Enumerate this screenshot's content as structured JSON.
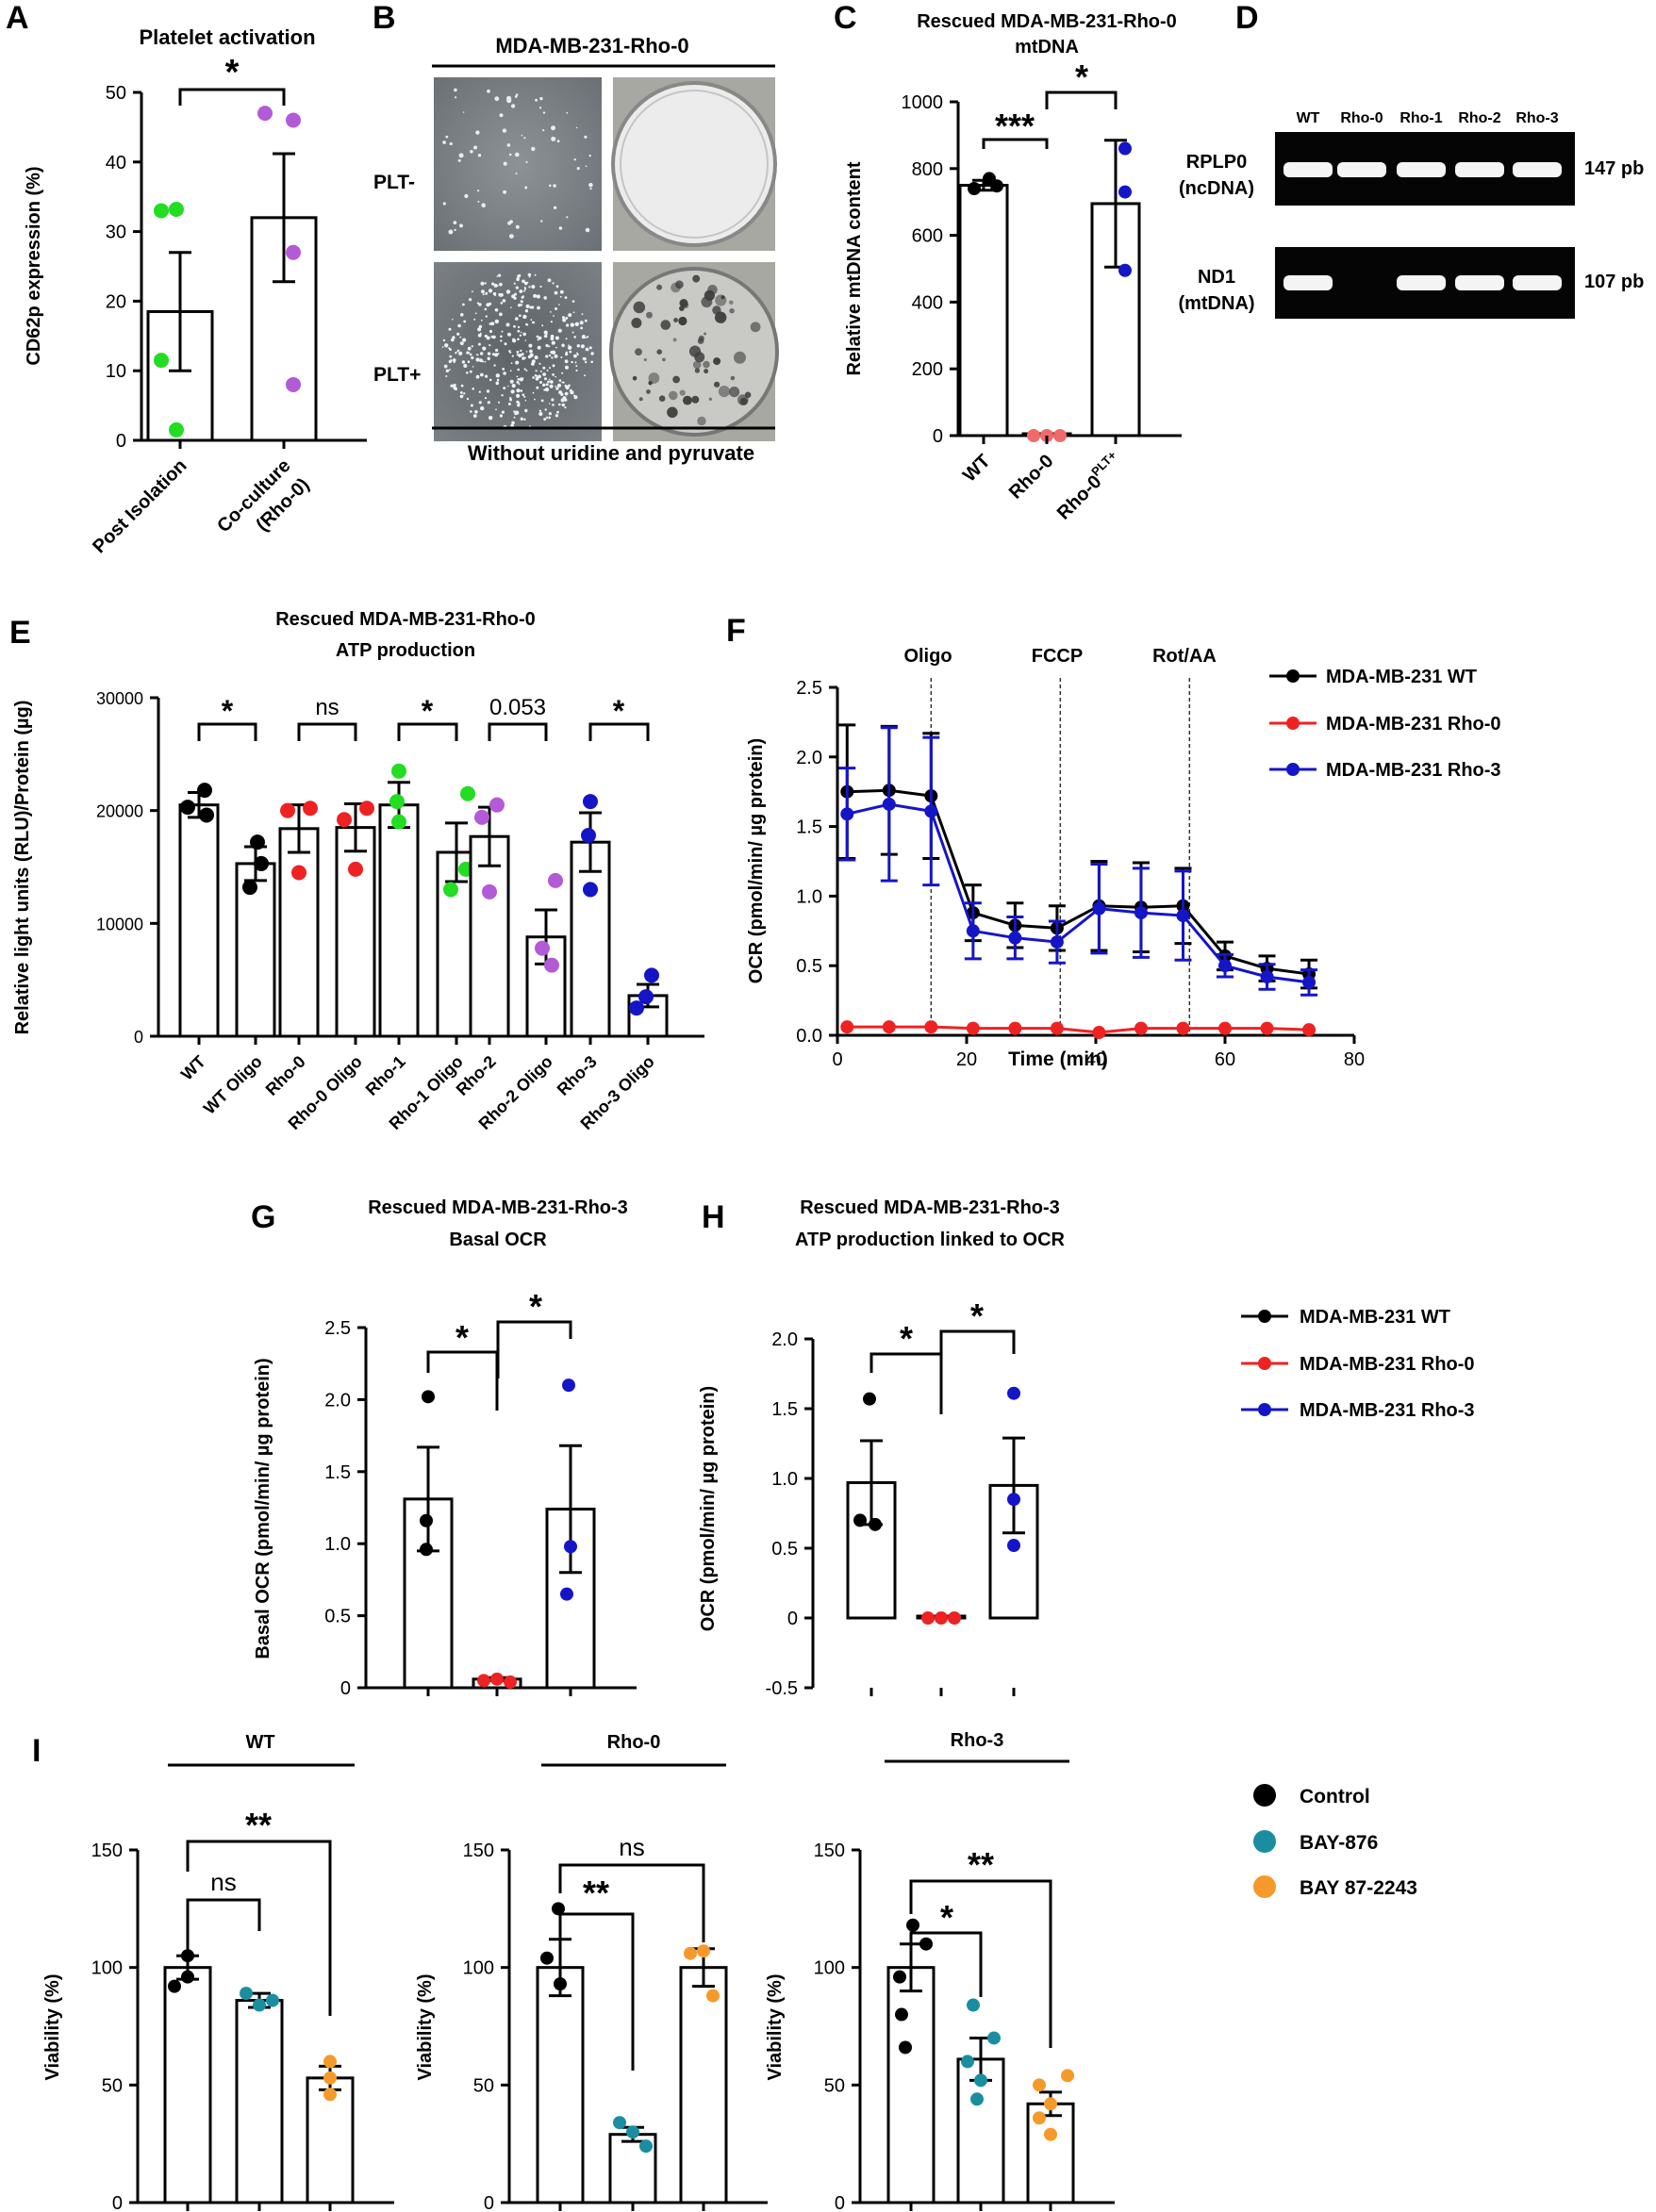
{
  "colors": {
    "black": "#000000",
    "green": "#22dd22",
    "purple": "#b35ad6",
    "red": "#ee2222",
    "blue": "#1515c8",
    "teal": "#1a8ea0",
    "orange": "#f59a2a",
    "salmon": "#f06a6a"
  },
  "panels": {
    "A": {
      "letter": "A",
      "title": "Platelet activation",
      "star": "*"
    },
    "B": {
      "letter": "B",
      "top": "MDA-MB-231-Rho-0",
      "bottom": "Without uridine and pyruvate",
      "row1": "PLT-",
      "row2": "PLT+"
    },
    "C": {
      "letter": "C",
      "title1": "Rescued MDA-MB-231-Rho-0",
      "title2": "mtDNA",
      "sig1": "***",
      "sig2": "*"
    },
    "D": {
      "letter": "D",
      "lanes": [
        "WT",
        "Rho-0",
        "Rho-1",
        "Rho-2",
        "Rho-3"
      ],
      "gene1": "RPLP0",
      "gene1sub": "(ncDNA)",
      "size1": "147 pb",
      "gene2": "ND1",
      "gene2sub": "(mtDNA)",
      "size2": "107 pb"
    },
    "E": {
      "letter": "E",
      "title1": "Rescued MDA-MB-231-Rho-0",
      "title2": "ATP production",
      "sigs": [
        "*",
        "ns",
        "*",
        "0.053",
        "*"
      ]
    },
    "F": {
      "letter": "F",
      "markers": [
        "Oligo",
        "FCCP",
        "Rot/AA"
      ]
    },
    "G": {
      "letter": "G",
      "title1": "Rescued MDA-MB-231-Rho-3",
      "title2": "Basal OCR",
      "sig1": "*",
      "sig2": "*"
    },
    "H": {
      "letter": "H",
      "title1": "Rescued MDA-MB-231-Rho-3",
      "title2": "ATP production linked to OCR",
      "sig1": "*",
      "sig2": "*"
    },
    "I": {
      "letter": "I",
      "titles": [
        "WT",
        "Rho-0",
        "Rho-3"
      ],
      "sigs": [
        [
          "ns",
          "**"
        ],
        [
          "**",
          "ns"
        ],
        [
          "*",
          "**"
        ]
      ]
    }
  },
  "legends": {
    "lines": [
      "MDA-MB-231 WT",
      "MDA-MB-231 Rho-0",
      "MDA-MB-231 Rho-3"
    ],
    "treatments": [
      "Control",
      "BAY-876",
      "BAY 87-2243"
    ]
  },
  "chart_data": [
    {
      "id": "A",
      "type": "bar",
      "title": "Platelet activation",
      "ylabel": "CD62p expression (%)",
      "ylim": [
        0,
        50
      ],
      "yticks": [
        0,
        10,
        20,
        30,
        40,
        50
      ],
      "categories": [
        "Post Isolation",
        "Co-culture (Rho-0)"
      ],
      "values": [
        18.5,
        32
      ],
      "errors": [
        8.5,
        9.2
      ],
      "points": [
        [
          33,
          33.2,
          11.5,
          1.5
        ],
        [
          47,
          46,
          27,
          8
        ]
      ]
    },
    {
      "id": "C",
      "type": "bar",
      "title": "Rescued MDA-MB-231-Rho-0 mtDNA",
      "ylabel": "Relative mtDNA content",
      "ylim": [
        0,
        1000
      ],
      "yticks": [
        0,
        200,
        400,
        600,
        800,
        1000
      ],
      "categories": [
        "WT",
        "Rho-0",
        "Rho-0PLT+"
      ],
      "values": [
        750,
        0,
        695
      ],
      "errors": [
        15,
        0,
        190
      ],
      "points": [
        [
          740,
          770,
          748
        ],
        [
          0,
          0,
          0
        ],
        [
          860,
          730,
          495
        ]
      ]
    },
    {
      "id": "E",
      "type": "bar",
      "title": "Rescued MDA-MB-231-Rho-0 ATP production",
      "ylabel": "Relative light units (RLU)/Protein (µg)",
      "ylim": [
        0,
        30000
      ],
      "yticks": [
        0,
        10000,
        20000,
        30000
      ],
      "categories": [
        "WT",
        "WT Oligo",
        "Rho-0",
        "Rho-0 Oligo",
        "Rho-1",
        "Rho-1 Oligo",
        "Rho-2",
        "Rho-2 Oligo",
        "Rho-3",
        "Rho-3 Oligo"
      ],
      "values": [
        20500,
        15300,
        18400,
        18500,
        20500,
        16300,
        17700,
        8800,
        17200,
        3600
      ],
      "errors": [
        1100,
        1500,
        2100,
        2100,
        2000,
        2600,
        2600,
        2400,
        2600,
        1000
      ],
      "points": [
        [
          21800,
          20300,
          19600
        ],
        [
          17200,
          15300,
          13200
        ],
        [
          20200,
          20000,
          14500
        ],
        [
          20200,
          19200,
          14800
        ],
        [
          23500,
          20800,
          19000
        ],
        [
          21500,
          14800,
          13000
        ],
        [
          20500,
          19400,
          12800
        ],
        [
          13800,
          7800,
          6300
        ],
        [
          20800,
          17800,
          13000
        ],
        [
          5400,
          3500,
          2500
        ]
      ]
    },
    {
      "id": "F",
      "type": "line",
      "xlabel": "Time (min)",
      "ylabel": "OCR (pmol/min/ µg protein)",
      "xlim": [
        0,
        80
      ],
      "xticks": [
        0,
        20,
        40,
        60,
        80
      ],
      "ylim": [
        0,
        2.5
      ],
      "yticks": [
        0.0,
        0.5,
        1.0,
        1.5,
        2.0,
        2.5
      ],
      "vlines": [
        {
          "x": 14.5,
          "label": "Oligo"
        },
        {
          "x": 34.5,
          "label": "FCCP"
        },
        {
          "x": 54.5,
          "label": "Rot/AA"
        }
      ],
      "x": [
        1.5,
        8,
        14.5,
        21,
        27.5,
        34,
        40.5,
        47,
        53.5,
        60,
        66.5,
        73
      ],
      "series": [
        {
          "name": "MDA-MB-231 WT",
          "color": "#000000",
          "values": [
            1.75,
            1.76,
            1.72,
            0.88,
            0.79,
            0.77,
            0.93,
            0.92,
            0.93,
            0.57,
            0.48,
            0.44
          ],
          "errors": [
            0.48,
            0.46,
            0.45,
            0.2,
            0.16,
            0.16,
            0.32,
            0.32,
            0.27,
            0.1,
            0.09,
            0.1
          ]
        },
        {
          "name": "MDA-MB-231 Rho-0",
          "color": "#ee2222",
          "values": [
            0.06,
            0.06,
            0.06,
            0.05,
            0.05,
            0.05,
            0.02,
            0.05,
            0.05,
            0.05,
            0.05,
            0.04
          ],
          "errors": [
            0,
            0,
            0,
            0,
            0,
            0,
            0,
            0,
            0,
            0,
            0,
            0
          ]
        },
        {
          "name": "MDA-MB-231 Rho-3",
          "color": "#1515c8",
          "values": [
            1.59,
            1.66,
            1.61,
            0.75,
            0.7,
            0.67,
            0.91,
            0.88,
            0.86,
            0.5,
            0.42,
            0.38
          ],
          "errors": [
            0.33,
            0.55,
            0.53,
            0.2,
            0.15,
            0.15,
            0.32,
            0.32,
            0.32,
            0.08,
            0.09,
            0.09
          ]
        }
      ]
    },
    {
      "id": "G",
      "type": "bar",
      "title": "Rescued MDA-MB-231-Rho-3 Basal OCR",
      "ylabel": "Basal OCR (pmol/min/ µg protein)",
      "ylim": [
        0,
        2.5
      ],
      "yticks": [
        0,
        0.5,
        1.0,
        1.5,
        2.0,
        2.5
      ],
      "categories": [
        "WT",
        "Rho-0",
        "Rho-3"
      ],
      "values": [
        1.31,
        0.06,
        1.24
      ],
      "errors": [
        0.36,
        0.01,
        0.44
      ],
      "points": [
        [
          2.02,
          1.16,
          0.96
        ],
        [
          0.05,
          0.06,
          0.04
        ],
        [
          2.1,
          0.98,
          0.65
        ]
      ]
    },
    {
      "id": "H",
      "type": "bar",
      "title": "Rescued MDA-MB-231-Rho-3 ATP production linked to OCR",
      "ylabel": "OCR (pmol/min/ µg protein)",
      "ylim": [
        -0.5,
        2.0
      ],
      "yticks": [
        -0.5,
        0,
        0.5,
        1.0,
        1.5,
        2.0
      ],
      "categories": [
        "WT",
        "Rho-0",
        "Rho-3"
      ],
      "values": [
        0.97,
        0.0,
        0.95
      ],
      "errors": [
        0.3,
        0,
        0.34
      ],
      "points": [
        [
          1.57,
          0.7,
          0.67
        ],
        [
          0,
          0,
          0
        ],
        [
          1.61,
          0.85,
          0.52
        ]
      ]
    },
    {
      "id": "I1",
      "type": "bar",
      "title": "WT",
      "ylabel": "Viability (%)",
      "ylim": [
        0,
        150
      ],
      "yticks": [
        0,
        50,
        100,
        150
      ],
      "categories": [
        "Control",
        "BAY-876",
        "BAY 87-2243"
      ],
      "values": [
        100,
        86,
        53
      ],
      "errors": [
        5,
        3,
        5
      ],
      "points": [
        [
          105,
          92,
          96
        ],
        [
          89,
          86,
          84
        ],
        [
          60,
          53,
          46
        ]
      ]
    },
    {
      "id": "I2",
      "type": "bar",
      "title": "Rho-0",
      "ylabel": "Viability (%)",
      "ylim": [
        0,
        150
      ],
      "yticks": [
        0,
        50,
        100,
        150
      ],
      "categories": [
        "Control",
        "BAY-876",
        "BAY 87-2243"
      ],
      "values": [
        100,
        29,
        100
      ],
      "errors": [
        12,
        3,
        8
      ],
      "points": [
        [
          125,
          104,
          93
        ],
        [
          34,
          30,
          24
        ],
        [
          107,
          106,
          88
        ]
      ]
    },
    {
      "id": "I3",
      "type": "bar",
      "title": "Rho-3",
      "ylabel": "Viability (%)",
      "ylim": [
        0,
        150
      ],
      "yticks": [
        0,
        50,
        100,
        150
      ],
      "categories": [
        "Control",
        "BAY-876",
        "BAY 87-2243"
      ],
      "values": [
        100,
        61,
        42
      ],
      "errors": [
        10,
        9,
        5
      ],
      "points": [
        [
          118,
          110,
          96,
          80,
          66
        ],
        [
          84,
          70,
          60,
          52,
          44
        ],
        [
          54,
          50,
          42,
          36,
          29
        ]
      ]
    }
  ]
}
